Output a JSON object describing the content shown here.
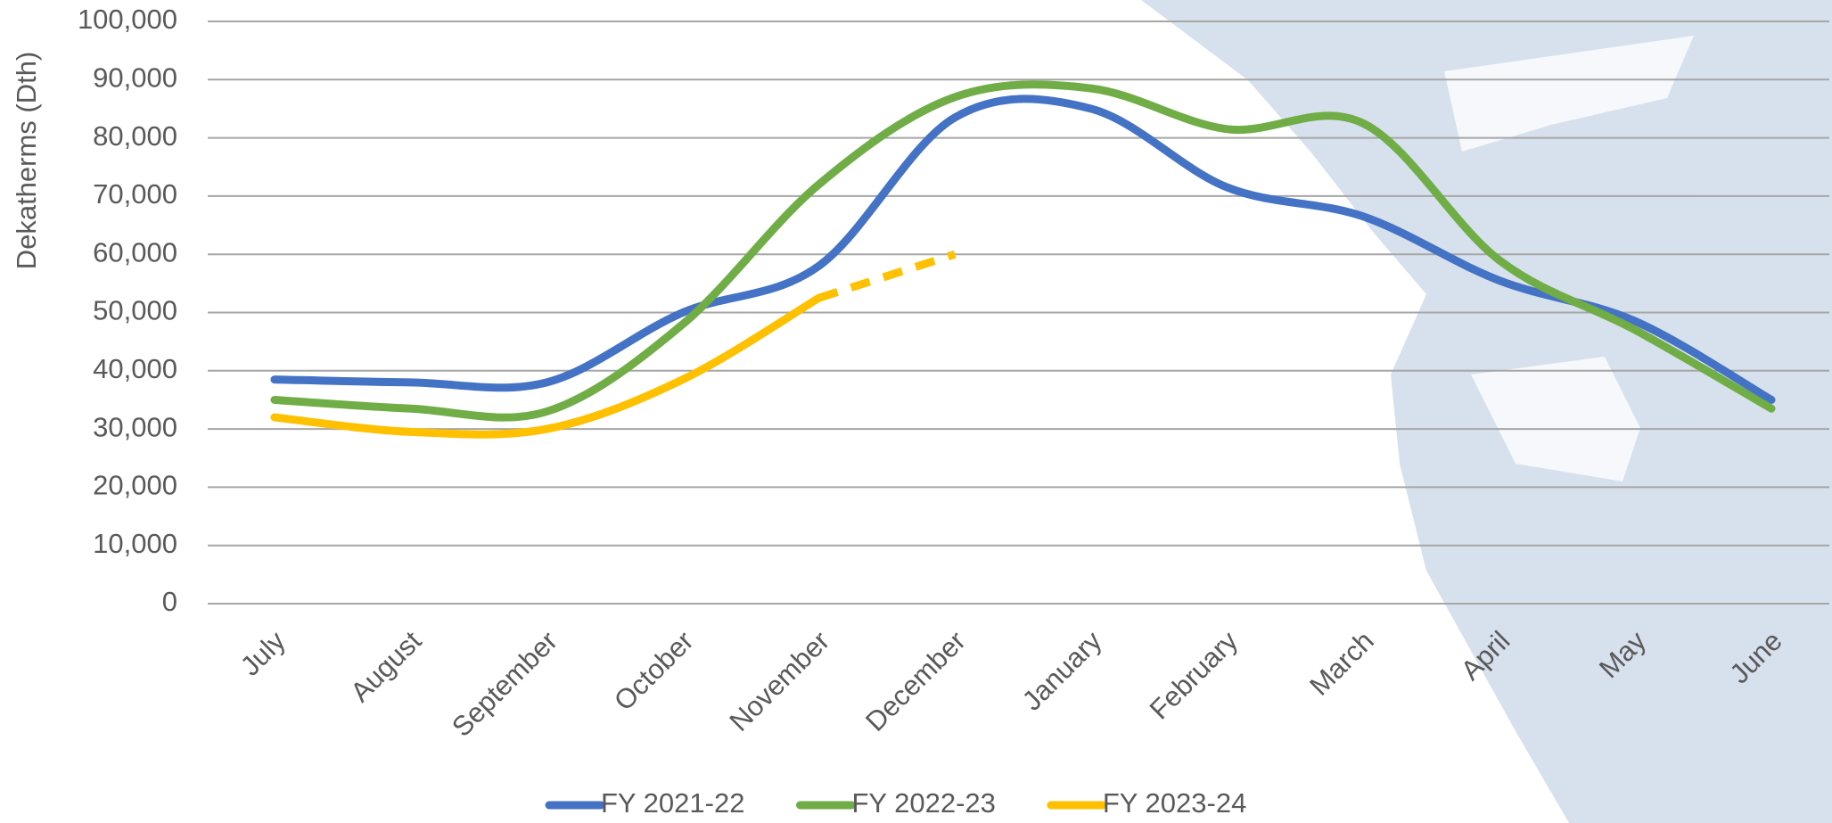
{
  "chart_data": {
    "type": "line",
    "y_label": "Dekatherms (Dth)",
    "categories": [
      "July",
      "August",
      "September",
      "October",
      "November",
      "December",
      "January",
      "February",
      "March",
      "April",
      "May",
      "June"
    ],
    "series": [
      {
        "name": "FY 2021-22",
        "color": "#4472c4",
        "values": [
          38500,
          38000,
          38000,
          50000,
          58000,
          83500,
          85000,
          71500,
          66500,
          55500,
          48500,
          35000
        ]
      },
      {
        "name": "FY 2022-23",
        "color": "#70ad47",
        "values": [
          35000,
          33500,
          33000,
          48000,
          72000,
          87000,
          88500,
          81500,
          82500,
          59000,
          47000,
          33500
        ]
      },
      {
        "name": "FY 2023-24",
        "color": "#ffc000",
        "values": [
          32000,
          29500,
          30000,
          38500,
          52500,
          60000,
          null,
          null,
          null,
          null,
          null,
          null
        ],
        "dash_from": 4
      }
    ],
    "ylim": [
      0,
      100000
    ],
    "yticks": [
      0,
      {
        "value": 10000,
        "label": "10,000"
      },
      {
        "value": 20000,
        "label": "20,000"
      },
      {
        "value": 30000,
        "label": "30,000"
      },
      {
        "value": 40000,
        "label": "40,000"
      },
      {
        "value": 50000,
        "label": "50,000"
      },
      {
        "value": 60000,
        "label": "60,000"
      },
      {
        "value": 70000,
        "label": "70,000"
      },
      {
        "value": 80000,
        "label": "80,000"
      },
      {
        "value": 90000,
        "label": "90,000"
      },
      {
        "value": 100000,
        "label": "100,000"
      }
    ],
    "grid": true,
    "legend": "bottom",
    "smooth": true
  }
}
